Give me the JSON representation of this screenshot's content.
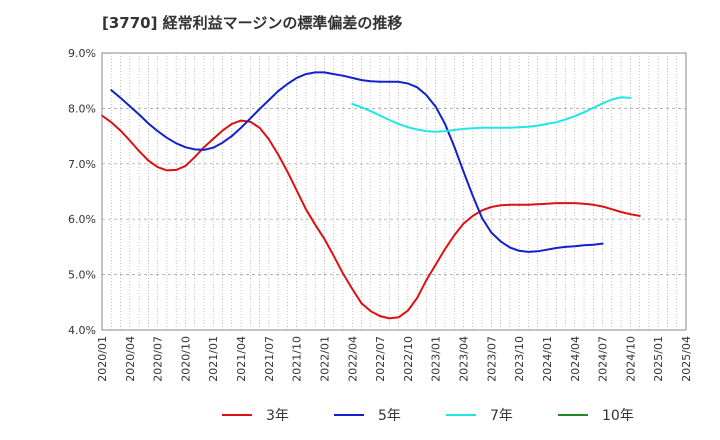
{
  "chart_data": {
    "type": "line",
    "title": "[3770]  経常利益マージンの標準偏差の推移",
    "xlabel": "",
    "ylabel": "",
    "ylim": [
      4.0,
      9.0
    ],
    "y_ticks": [
      "4.0%",
      "5.0%",
      "6.0%",
      "7.0%",
      "8.0%",
      "9.0%"
    ],
    "x_ticks": [
      "2020/01",
      "2020/04",
      "2020/07",
      "2020/10",
      "2021/01",
      "2021/04",
      "2021/07",
      "2021/10",
      "2022/01",
      "2022/04",
      "2022/07",
      "2022/10",
      "2023/01",
      "2023/04",
      "2023/07",
      "2023/10",
      "2024/01",
      "2024/04",
      "2024/07",
      "2024/10",
      "2025/01",
      "2025/04"
    ],
    "grid": true,
    "legend_position": "bottom",
    "series": [
      {
        "name": "3年",
        "color": "#dd1111",
        "points": [
          [
            "2020/01",
            7.87
          ],
          [
            "2020/02",
            7.75
          ],
          [
            "2020/03",
            7.6
          ],
          [
            "2020/04",
            7.42
          ],
          [
            "2020/05",
            7.23
          ],
          [
            "2020/06",
            7.06
          ],
          [
            "2020/07",
            6.94
          ],
          [
            "2020/08",
            6.88
          ],
          [
            "2020/09",
            6.89
          ],
          [
            "2020/10",
            6.96
          ],
          [
            "2020/11",
            7.12
          ],
          [
            "2020/12",
            7.3
          ],
          [
            "2021/01",
            7.45
          ],
          [
            "2021/02",
            7.6
          ],
          [
            "2021/03",
            7.72
          ],
          [
            "2021/04",
            7.78
          ],
          [
            "2021/05",
            7.76
          ],
          [
            "2021/06",
            7.65
          ],
          [
            "2021/07",
            7.44
          ],
          [
            "2021/08",
            7.17
          ],
          [
            "2021/09",
            6.86
          ],
          [
            "2021/10",
            6.52
          ],
          [
            "2021/11",
            6.18
          ],
          [
            "2021/12",
            5.9
          ],
          [
            "2022/01",
            5.64
          ],
          [
            "2022/02",
            5.34
          ],
          [
            "2022/03",
            5.02
          ],
          [
            "2022/04",
            4.74
          ],
          [
            "2022/05",
            4.48
          ],
          [
            "2022/06",
            4.34
          ],
          [
            "2022/07",
            4.25
          ],
          [
            "2022/08",
            4.21
          ],
          [
            "2022/09",
            4.23
          ],
          [
            "2022/10",
            4.35
          ],
          [
            "2022/11",
            4.58
          ],
          [
            "2022/12",
            4.9
          ],
          [
            "2023/01",
            5.18
          ],
          [
            "2023/02",
            5.46
          ],
          [
            "2023/03",
            5.71
          ],
          [
            "2023/04",
            5.92
          ],
          [
            "2023/05",
            6.06
          ],
          [
            "2023/06",
            6.16
          ],
          [
            "2023/07",
            6.22
          ],
          [
            "2023/08",
            6.25
          ],
          [
            "2023/09",
            6.26
          ],
          [
            "2023/10",
            6.26
          ],
          [
            "2023/11",
            6.26
          ],
          [
            "2023/12",
            6.27
          ],
          [
            "2024/01",
            6.28
          ],
          [
            "2024/02",
            6.29
          ],
          [
            "2024/03",
            6.29
          ],
          [
            "2024/04",
            6.29
          ],
          [
            "2024/05",
            6.28
          ],
          [
            "2024/06",
            6.26
          ],
          [
            "2024/07",
            6.23
          ],
          [
            "2024/08",
            6.18
          ],
          [
            "2024/09",
            6.13
          ],
          [
            "2024/10",
            6.09
          ],
          [
            "2024/11",
            6.06
          ]
        ]
      },
      {
        "name": "5年",
        "color": "#1122cc",
        "points": [
          [
            "2020/02",
            8.33
          ],
          [
            "2020/03",
            8.19
          ],
          [
            "2020/04",
            8.04
          ],
          [
            "2020/05",
            7.89
          ],
          [
            "2020/06",
            7.73
          ],
          [
            "2020/07",
            7.59
          ],
          [
            "2020/08",
            7.47
          ],
          [
            "2020/09",
            7.37
          ],
          [
            "2020/10",
            7.3
          ],
          [
            "2020/11",
            7.26
          ],
          [
            "2020/12",
            7.25
          ],
          [
            "2021/01",
            7.29
          ],
          [
            "2021/02",
            7.38
          ],
          [
            "2021/03",
            7.5
          ],
          [
            "2021/04",
            7.65
          ],
          [
            "2021/05",
            7.82
          ],
          [
            "2021/06",
            7.99
          ],
          [
            "2021/07",
            8.15
          ],
          [
            "2021/08",
            8.31
          ],
          [
            "2021/09",
            8.44
          ],
          [
            "2021/10",
            8.55
          ],
          [
            "2021/11",
            8.62
          ],
          [
            "2021/12",
            8.65
          ],
          [
            "2022/01",
            8.65
          ],
          [
            "2022/02",
            8.62
          ],
          [
            "2022/03",
            8.59
          ],
          [
            "2022/04",
            8.55
          ],
          [
            "2022/05",
            8.51
          ],
          [
            "2022/06",
            8.49
          ],
          [
            "2022/07",
            8.48
          ],
          [
            "2022/08",
            8.48
          ],
          [
            "2022/09",
            8.48
          ],
          [
            "2022/10",
            8.45
          ],
          [
            "2022/11",
            8.38
          ],
          [
            "2022/12",
            8.24
          ],
          [
            "2023/01",
            8.03
          ],
          [
            "2023/02",
            7.72
          ],
          [
            "2023/03",
            7.31
          ],
          [
            "2023/04",
            6.86
          ],
          [
            "2023/05",
            6.42
          ],
          [
            "2023/06",
            6.02
          ],
          [
            "2023/07",
            5.76
          ],
          [
            "2023/08",
            5.6
          ],
          [
            "2023/09",
            5.49
          ],
          [
            "2023/10",
            5.43
          ],
          [
            "2023/11",
            5.41
          ],
          [
            "2023/12",
            5.42
          ],
          [
            "2024/01",
            5.45
          ],
          [
            "2024/02",
            5.48
          ],
          [
            "2024/03",
            5.5
          ],
          [
            "2024/04",
            5.51
          ],
          [
            "2024/05",
            5.53
          ],
          [
            "2024/06",
            5.54
          ],
          [
            "2024/07",
            5.56
          ]
        ]
      },
      {
        "name": "7年",
        "color": "#22e6e6",
        "points": [
          [
            "2022/04",
            8.08
          ],
          [
            "2022/05",
            8.02
          ],
          [
            "2022/06",
            7.95
          ],
          [
            "2022/07",
            7.87
          ],
          [
            "2022/08",
            7.79
          ],
          [
            "2022/09",
            7.72
          ],
          [
            "2022/10",
            7.66
          ],
          [
            "2022/11",
            7.62
          ],
          [
            "2022/12",
            7.59
          ],
          [
            "2023/01",
            7.58
          ],
          [
            "2023/02",
            7.59
          ],
          [
            "2023/03",
            7.61
          ],
          [
            "2023/04",
            7.63
          ],
          [
            "2023/05",
            7.64
          ],
          [
            "2023/06",
            7.65
          ],
          [
            "2023/07",
            7.65
          ],
          [
            "2023/08",
            7.65
          ],
          [
            "2023/09",
            7.65
          ],
          [
            "2023/10",
            7.66
          ],
          [
            "2023/11",
            7.67
          ],
          [
            "2023/12",
            7.69
          ],
          [
            "2024/01",
            7.72
          ],
          [
            "2024/02",
            7.75
          ],
          [
            "2024/03",
            7.8
          ],
          [
            "2024/04",
            7.86
          ],
          [
            "2024/05",
            7.93
          ],
          [
            "2024/06",
            8.01
          ],
          [
            "2024/07",
            8.09
          ],
          [
            "2024/08",
            8.16
          ],
          [
            "2024/09",
            8.2
          ],
          [
            "2024/10",
            8.19
          ]
        ]
      },
      {
        "name": "10年",
        "color": "#228822",
        "points": []
      }
    ]
  }
}
